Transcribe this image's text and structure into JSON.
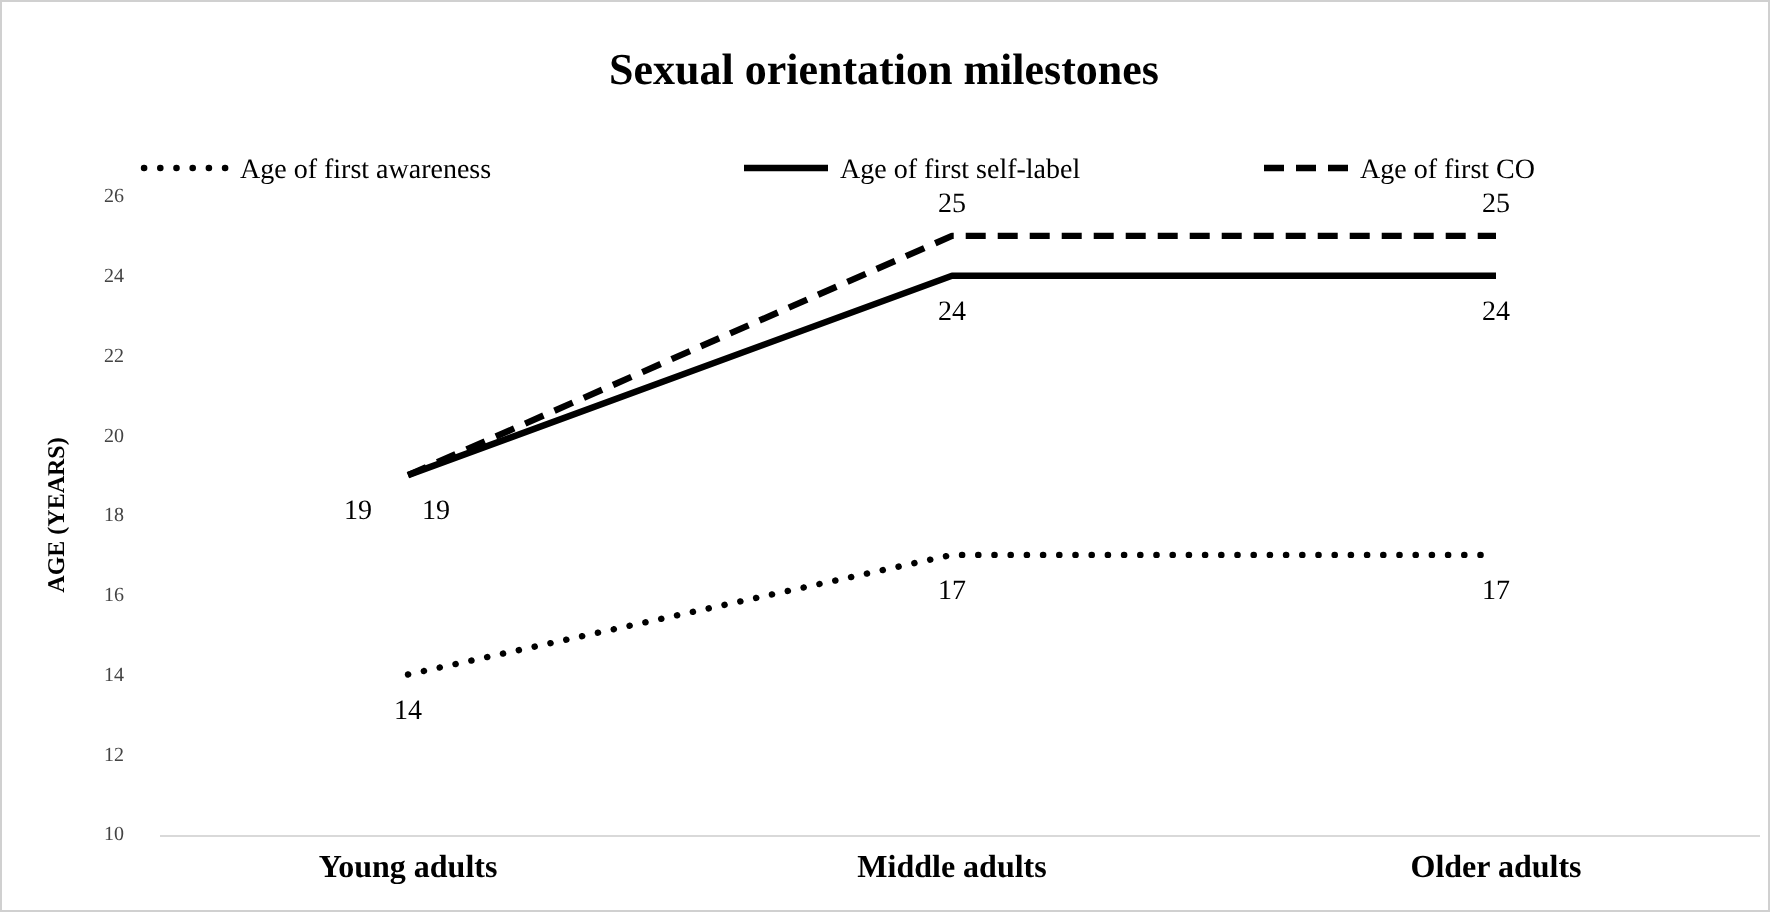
{
  "chart_data": {
    "type": "line",
    "title": "Sexual orientation milestones",
    "ylabel": "AGE (YEARS)",
    "categories": [
      "Young adults",
      "Middle adults",
      "Older adults"
    ],
    "series": [
      {
        "name": "Age of first awareness",
        "color": "#000000",
        "line_style": "dotted",
        "values": [
          14,
          17,
          17
        ]
      },
      {
        "name": "Age of first self-label",
        "color": "#000000",
        "line_style": "solid",
        "values": [
          19,
          24,
          24
        ]
      },
      {
        "name": "Age of first CO",
        "color": "#000000",
        "line_style": "dashed",
        "values": [
          19,
          25,
          25
        ]
      }
    ],
    "ylim": [
      10,
      26
    ],
    "yticks": [
      10,
      12,
      14,
      16,
      18,
      20,
      22,
      24,
      26
    ],
    "data_labels": true,
    "legend": "top",
    "grid": false,
    "marker": "none"
  }
}
